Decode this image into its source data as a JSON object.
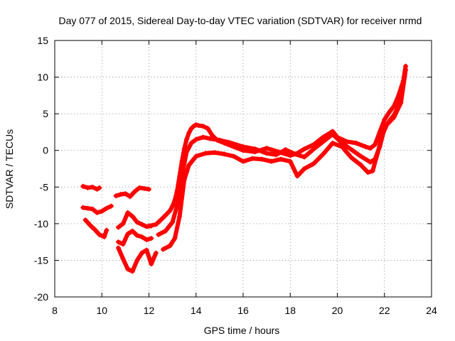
{
  "chart_data": {
    "type": "scatter",
    "title": "Day 077 of 2015, Sidereal Day-to-day VTEC variation (SDTVAR) for receiver nrmd",
    "xlabel": "GPS time / hours",
    "ylabel": "SDTVAR / TECUs",
    "xlim": [
      8,
      24
    ],
    "ylim": [
      -20,
      15
    ],
    "xticks": [
      "8",
      "10",
      "12",
      "14",
      "16",
      "18",
      "20",
      "22",
      "24"
    ],
    "yticks": [
      "-20",
      "-15",
      "-10",
      "-5",
      "0",
      "5",
      "10",
      "15"
    ],
    "grid": true,
    "marker": "plus",
    "color": "#ff0000",
    "series": [
      {
        "x": [
          9.2,
          9.4,
          9.6,
          9.8,
          9.9
        ],
        "y": [
          -4.9,
          -5.1,
          -5.0,
          -5.3,
          -5.1
        ]
      },
      {
        "x": [
          10.6,
          10.8,
          11.0,
          11.2,
          11.4,
          11.6,
          11.8,
          12.0
        ],
        "y": [
          -6.2,
          -6.0,
          -5.9,
          -6.3,
          -5.6,
          -5.1,
          -5.2,
          -5.3
        ]
      },
      {
        "x": [
          9.2,
          9.4,
          9.6,
          9.8,
          10.0,
          10.2,
          10.4
        ],
        "y": [
          -7.8,
          -7.9,
          -8.0,
          -8.5,
          -8.3,
          -7.9,
          -7.6
        ]
      },
      {
        "x": [
          9.3,
          9.5,
          9.7,
          9.9,
          10.1,
          10.2
        ],
        "y": [
          -9.5,
          -10.2,
          -10.8,
          -11.5,
          -11.8,
          -10.9
        ]
      },
      {
        "x": [
          10.7,
          10.9,
          11.1,
          11.3,
          11.5,
          11.7,
          11.9,
          12.1
        ],
        "y": [
          -10.5,
          -10.0,
          -8.5,
          -9.0,
          -9.8,
          -10.1,
          -10.4,
          -10.3
        ]
      },
      {
        "x": [
          10.7,
          10.9,
          11.1,
          11.3,
          11.5,
          11.7,
          11.9,
          12.1
        ],
        "y": [
          -12.5,
          -12.8,
          -11.4,
          -11.0,
          -11.6,
          -11.8,
          -12.2,
          -12.0
        ]
      },
      {
        "x": [
          10.7,
          10.9,
          11.1,
          11.3,
          11.5,
          11.7,
          11.9,
          12.1,
          12.3
        ],
        "y": [
          -13.3,
          -14.8,
          -16.2,
          -16.5,
          -15.0,
          -14.0,
          -13.6,
          -15.5,
          -14.0
        ]
      },
      {
        "x": [
          12.0,
          12.3,
          12.6,
          12.9,
          13.0,
          13.1,
          13.2,
          13.3,
          13.4,
          13.5,
          13.6,
          13.7,
          13.8,
          13.9,
          14.0,
          14.1,
          14.3,
          14.5,
          14.7,
          14.9,
          15.2,
          15.6,
          16.0,
          16.5,
          17.0,
          17.5,
          18.0,
          18.3,
          18.6,
          19.0,
          19.4,
          19.8,
          20.0,
          20.4,
          20.8,
          21.2,
          21.4,
          21.6,
          21.8,
          22.0,
          22.2,
          22.4,
          22.6,
          22.8,
          22.9
        ],
        "y": [
          -10.3,
          -10.1,
          -9.2,
          -8.2,
          -7.6,
          -6.8,
          -5.5,
          -3.5,
          -1.5,
          0.2,
          1.5,
          2.4,
          3.0,
          3.3,
          3.5,
          3.4,
          3.3,
          3.0,
          2.0,
          1.4,
          1.0,
          0.5,
          0.0,
          -0.2,
          0.3,
          -0.2,
          -0.7,
          -0.4,
          0.2,
          0.8,
          1.8,
          2.6,
          1.8,
          1.2,
          1.0,
          0.5,
          0.3,
          0.8,
          2.5,
          4.2,
          5.2,
          6.0,
          7.5,
          9.5,
          11.5
        ]
      },
      {
        "x": [
          12.4,
          12.7,
          13.0,
          13.2,
          13.4,
          13.6,
          13.8,
          14.0,
          14.3,
          14.6,
          15.0,
          15.4,
          16.0,
          16.5,
          17.0,
          17.4,
          17.8,
          18.2,
          18.6,
          19.0,
          19.4,
          19.8,
          20.2,
          20.6,
          21.0,
          21.4,
          21.6,
          21.8,
          22.0,
          22.2,
          22.4,
          22.6,
          22.8
        ],
        "y": [
          -11.5,
          -11.0,
          -9.8,
          -7.5,
          -3.5,
          -0.2,
          1.0,
          1.5,
          1.8,
          1.6,
          1.4,
          1.1,
          0.5,
          0.2,
          -0.4,
          -0.6,
          0.1,
          -0.5,
          -0.9,
          0.2,
          1.2,
          2.2,
          1.0,
          0.1,
          -0.8,
          -1.6,
          -1.2,
          0.5,
          3.0,
          4.0,
          4.8,
          6.0,
          9.0
        ]
      },
      {
        "x": [
          12.6,
          12.9,
          13.1,
          13.3,
          13.5,
          13.7,
          14.0,
          14.4,
          14.8,
          15.2,
          15.6,
          16.0,
          16.4,
          16.8,
          17.2,
          17.6,
          18.0,
          18.3,
          18.6,
          19.0,
          19.4,
          19.8,
          20.2,
          20.6,
          21.0,
          21.3,
          21.5,
          21.7,
          21.9,
          22.1,
          22.4,
          22.7,
          22.9
        ],
        "y": [
          -13.5,
          -13.0,
          -12.0,
          -9.0,
          -4.0,
          -2.0,
          -0.8,
          -0.4,
          -0.3,
          -0.5,
          -0.8,
          -1.5,
          -1.1,
          -1.2,
          -1.5,
          -1.2,
          -1.5,
          -3.5,
          -2.5,
          -1.8,
          -0.5,
          1.0,
          0.5,
          -1.0,
          -2.0,
          -3.0,
          -2.8,
          -0.5,
          2.0,
          3.5,
          4.5,
          6.5,
          11.0
        ]
      }
    ]
  }
}
